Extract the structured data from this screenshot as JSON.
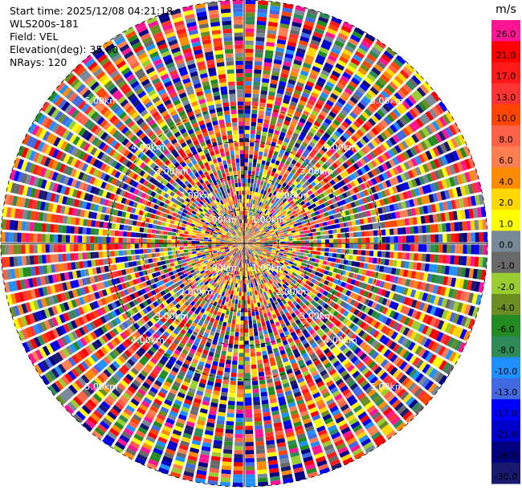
{
  "info": {
    "start_time": "Start time: 2025/12/08 04:21:18",
    "instrument": "WLS200s-181",
    "field": "Field: VEL",
    "elevation": "Elevation(deg): 35.00",
    "nrays": "NRays: 120"
  },
  "chart_data": {
    "type": "heatmap",
    "projection": "polar-ppi",
    "field": "VEL",
    "n_rays": 120,
    "range_rings": [
      {
        "label": "1.00km"
      },
      {
        "label": "2.00km"
      },
      {
        "label": "3.00km"
      },
      {
        "label": "4.00km"
      },
      {
        "label": "5.00km"
      }
    ],
    "colorbar": {
      "unit": "m/s",
      "ticks": [
        "26.0",
        "21.0",
        "17.0",
        "13.0",
        "10.0",
        "8.0",
        "6.0",
        "4.0",
        "2.0",
        "1.0",
        "0.0",
        "-1.0",
        "-2.0",
        "-4.0",
        "-6.0",
        "-8.0",
        "-10.0",
        "-13.0",
        "-17.0",
        "-21.0",
        "-26.0",
        "-30.0"
      ],
      "colors": [
        "#ff1493",
        "#ff0000",
        "#ff1a1a",
        "#ff3333",
        "#ff4500",
        "#ff6347",
        "#ff7f50",
        "#ff8c00",
        "#ffd700",
        "#ffff00",
        "#778899",
        "#696969",
        "#9acd32",
        "#6b8e23",
        "#228b22",
        "#2e8b57",
        "#1e90ff",
        "#4169e1",
        "#0000ff",
        "#0000cd",
        "#000080",
        "#191970"
      ]
    },
    "grid": true
  }
}
